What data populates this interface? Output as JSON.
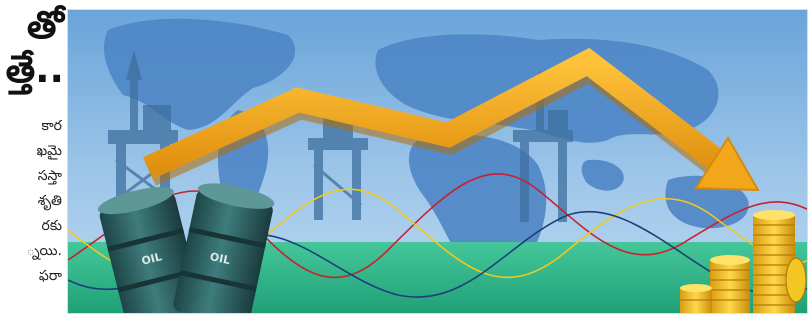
{
  "article": {
    "headline_lines": [
      "తో",
      "త్తే.."
    ],
    "body_lines": [
      "కార",
      "ఖమై",
      "సస్తా",
      "శృతి",
      "రకు",
      "్నయి.",
      "ఫరా"
    ]
  },
  "illustration": {
    "barrel_labels": [
      "OIL",
      "OIL"
    ],
    "colors": {
      "sky": "#7fb0dd",
      "map": "#4f86c6",
      "ground": "#2fb98c",
      "arrow": "#f2a71b",
      "coins": "#f3c623",
      "barrel": "#2d5e5f"
    }
  }
}
